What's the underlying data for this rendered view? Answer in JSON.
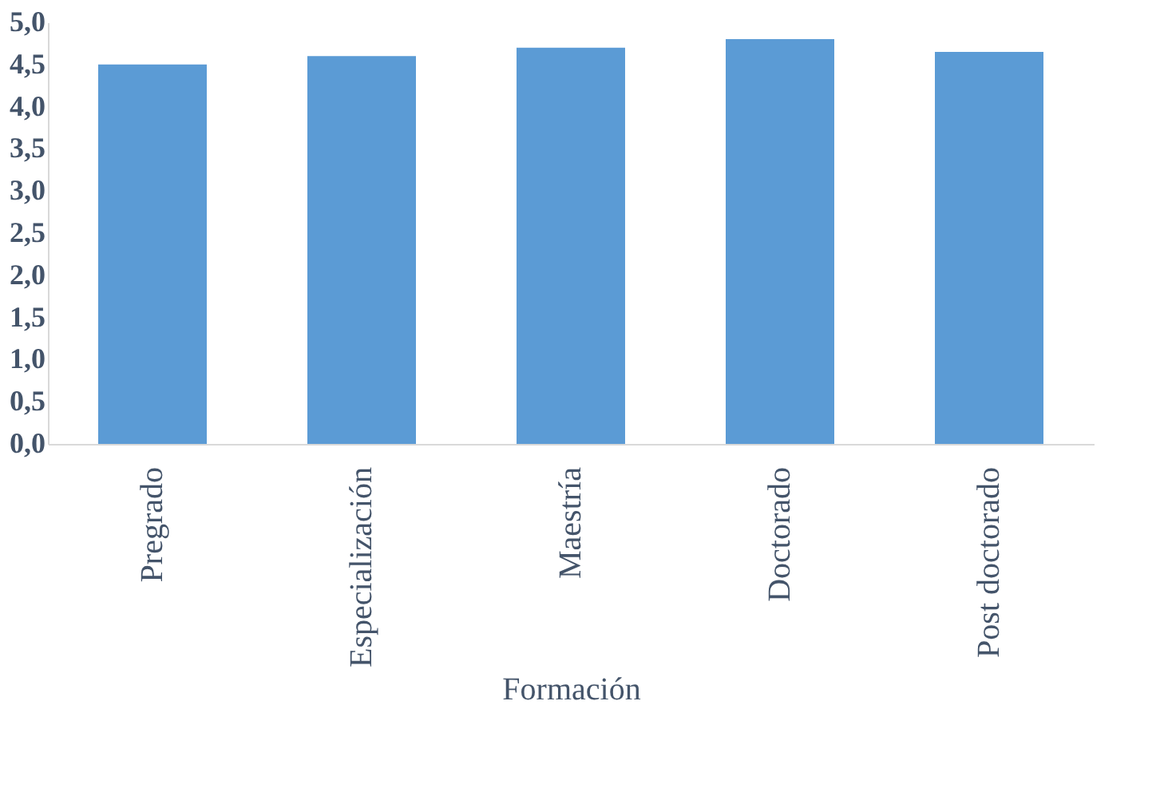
{
  "chart_data": {
    "type": "bar",
    "xlabel": "Formación",
    "categories": [
      "Pregrado",
      "Especialización",
      "Maestría",
      "Doctorado",
      "Post doctorado"
    ],
    "values": [
      4.5,
      4.6,
      4.7,
      4.8,
      4.65
    ],
    "color": "#5b9bd5",
    "ylim": [
      0,
      5
    ],
    "yticks": [
      {
        "value": 0,
        "label": "0,0"
      },
      {
        "value": 0.5,
        "label": "0,5"
      },
      {
        "value": 1,
        "label": "1,0"
      },
      {
        "value": 1.5,
        "label": "1,5"
      },
      {
        "value": 2,
        "label": "2,0"
      },
      {
        "value": 2.5,
        "label": "2,5"
      },
      {
        "value": 3,
        "label": "3,0"
      },
      {
        "value": 3.5,
        "label": "3,5"
      },
      {
        "value": 4,
        "label": "4,0"
      },
      {
        "value": 4.5,
        "label": "4,5"
      },
      {
        "value": 5,
        "label": "5,0"
      }
    ],
    "grid": false
  }
}
